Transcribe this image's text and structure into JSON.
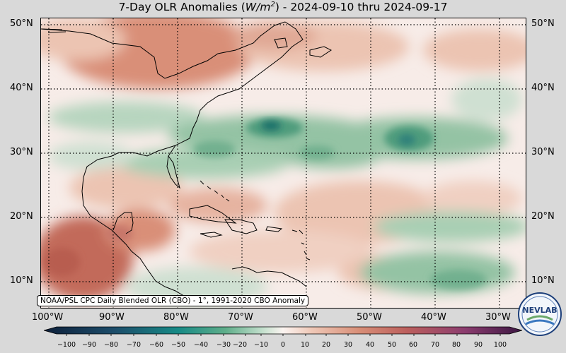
{
  "title": {
    "prefix": "7-Day OLR Anomalies (",
    "unit_base": "W/m",
    "unit_exp": "2",
    "suffix": ") - 2024-09-10 thru 2024-09-17"
  },
  "map": {
    "lat_labels": [
      "50°N",
      "40°N",
      "30°N",
      "20°N",
      "10°N"
    ],
    "lon_labels": [
      "100°W",
      "90°W",
      "80°W",
      "70°W",
      "60°W",
      "50°W",
      "40°W",
      "30°W"
    ],
    "colors": {
      "background": "#f7ece8",
      "positive_light": "#ecc4b2",
      "positive_mid": "#d98f78",
      "positive_strong": "#c26a5a",
      "negative_light": "#cfe0d2",
      "negative_mid": "#94c3a4",
      "negative_strong": "#4f9c7d",
      "negative_deep": "#1f6f6a"
    }
  },
  "source_note": "NOAA/PSL CPC Daily Blended OLR (CBO) - 1°, 1991-2020 CBO Anomaly",
  "colorbar": {
    "ticks": [
      "−100",
      "−90",
      "−80",
      "−70",
      "−60",
      "−50",
      "−40",
      "−30",
      "−20",
      "−10",
      "0",
      "10",
      "20",
      "30",
      "40",
      "50",
      "60",
      "70",
      "80",
      "90",
      "100"
    ],
    "min": -100,
    "max": 100
  },
  "logo": {
    "text": "NEVLAB"
  }
}
